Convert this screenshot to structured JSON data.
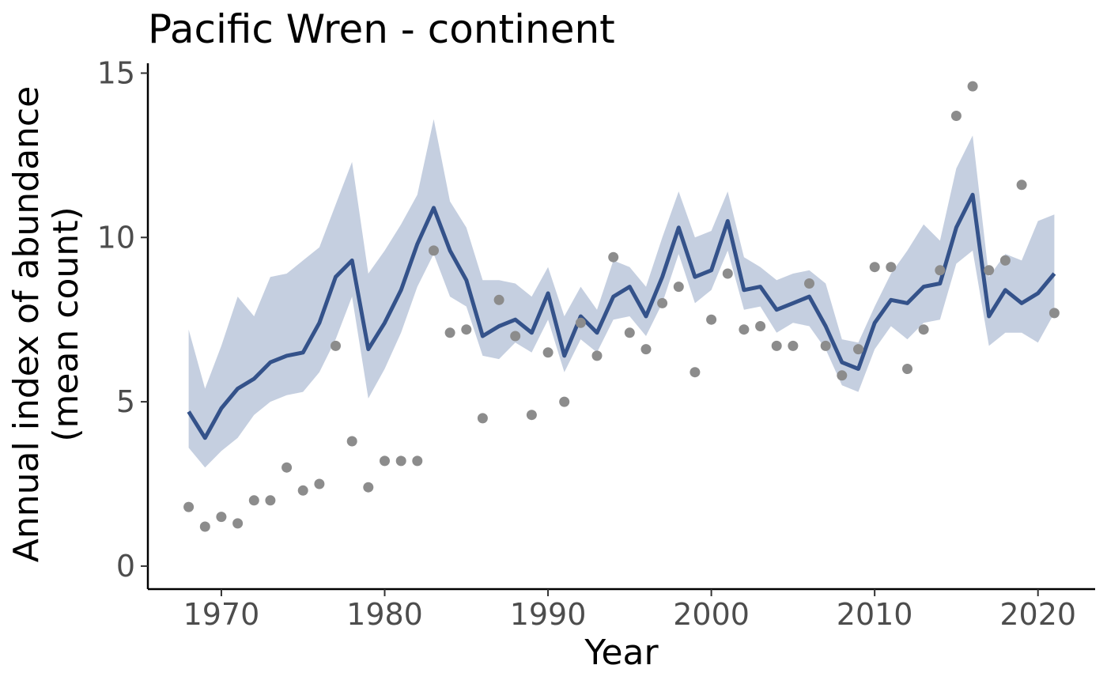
{
  "chart_data": {
    "type": "line",
    "title": "Pacific Wren - continent",
    "xlabel": "Year",
    "ylabel_lines": [
      "Annual index of abundance",
      "(mean count)"
    ],
    "xlim": [
      1965.5,
      2023.5
    ],
    "ylim": [
      -0.7,
      15.3
    ],
    "x_ticks": [
      1970,
      1980,
      1990,
      2000,
      2010,
      2020
    ],
    "y_ticks": [
      0,
      5,
      10,
      15
    ],
    "grid": false,
    "legend": "none",
    "colors": {
      "line": "#34528a",
      "band": "#c5cfe0",
      "points": "#8c8c8c"
    },
    "years": [
      1968,
      1969,
      1970,
      1971,
      1972,
      1973,
      1974,
      1975,
      1976,
      1977,
      1978,
      1979,
      1980,
      1981,
      1982,
      1983,
      1984,
      1985,
      1986,
      1987,
      1988,
      1989,
      1990,
      1991,
      1992,
      1993,
      1994,
      1995,
      1996,
      1997,
      1998,
      1999,
      2000,
      2001,
      2002,
      2003,
      2004,
      2005,
      2006,
      2007,
      2008,
      2009,
      2010,
      2011,
      2012,
      2013,
      2014,
      2015,
      2016,
      2017,
      2018,
      2019,
      2020,
      2021
    ],
    "series": [
      {
        "kind": "index",
        "values": [
          4.7,
          3.9,
          4.8,
          5.4,
          5.7,
          6.2,
          6.4,
          6.5,
          7.4,
          8.8,
          9.3,
          6.6,
          7.4,
          8.4,
          9.8,
          10.9,
          9.6,
          8.7,
          7.0,
          7.3,
          7.5,
          7.1,
          8.3,
          6.4,
          7.6,
          7.1,
          8.2,
          8.5,
          7.6,
          8.8,
          10.3,
          8.8,
          9.0,
          10.5,
          8.4,
          8.5,
          7.8,
          8.0,
          8.2,
          7.3,
          6.2,
          6.0,
          7.4,
          8.1,
          8.0,
          8.5,
          8.6,
          10.3,
          11.3,
          7.6,
          8.4,
          8.0,
          8.3,
          8.9
        ]
      },
      {
        "kind": "ci_lower",
        "values": [
          3.6,
          3.0,
          3.5,
          3.9,
          4.6,
          5.0,
          5.2,
          5.3,
          5.9,
          6.9,
          8.2,
          5.1,
          6.0,
          7.1,
          8.5,
          9.5,
          8.2,
          7.9,
          6.4,
          6.3,
          6.8,
          6.5,
          7.5,
          5.9,
          6.9,
          6.5,
          7.5,
          7.6,
          7.0,
          8.0,
          9.5,
          8.0,
          8.4,
          9.6,
          7.8,
          7.9,
          7.1,
          7.4,
          7.3,
          6.6,
          5.5,
          5.3,
          6.6,
          7.3,
          6.9,
          7.4,
          7.5,
          9.2,
          9.6,
          6.7,
          7.1,
          7.1,
          6.8,
          7.7
        ]
      },
      {
        "kind": "ci_upper",
        "values": [
          7.2,
          5.4,
          6.7,
          8.2,
          7.6,
          8.8,
          8.9,
          9.3,
          9.7,
          11.0,
          12.3,
          8.9,
          9.6,
          10.4,
          11.3,
          13.6,
          11.1,
          10.3,
          8.7,
          8.7,
          8.6,
          8.2,
          9.1,
          7.6,
          8.5,
          7.8,
          9.3,
          9.1,
          8.5,
          10.0,
          11.4,
          10.0,
          10.2,
          11.4,
          9.4,
          9.1,
          8.7,
          8.9,
          9.0,
          8.6,
          6.9,
          6.8,
          7.9,
          8.9,
          9.6,
          10.4,
          9.9,
          12.1,
          13.1,
          8.8,
          9.5,
          9.3,
          10.5,
          10.7
        ]
      },
      {
        "kind": "observed_mean",
        "values": [
          1.8,
          1.2,
          1.5,
          1.3,
          2.0,
          2.0,
          3.0,
          2.3,
          2.5,
          6.7,
          3.8,
          2.4,
          3.2,
          3.2,
          3.2,
          9.6,
          7.1,
          7.2,
          4.5,
          8.1,
          7.0,
          4.6,
          6.5,
          5.0,
          7.4,
          6.4,
          9.4,
          7.1,
          6.6,
          8.0,
          8.5,
          5.9,
          7.5,
          8.9,
          7.2,
          7.3,
          6.7,
          6.7,
          8.6,
          6.7,
          5.8,
          6.6,
          9.1,
          9.1,
          6.0,
          7.2,
          9.0,
          13.7,
          14.6,
          9.0,
          9.3,
          11.6,
          null,
          7.7
        ]
      }
    ]
  }
}
